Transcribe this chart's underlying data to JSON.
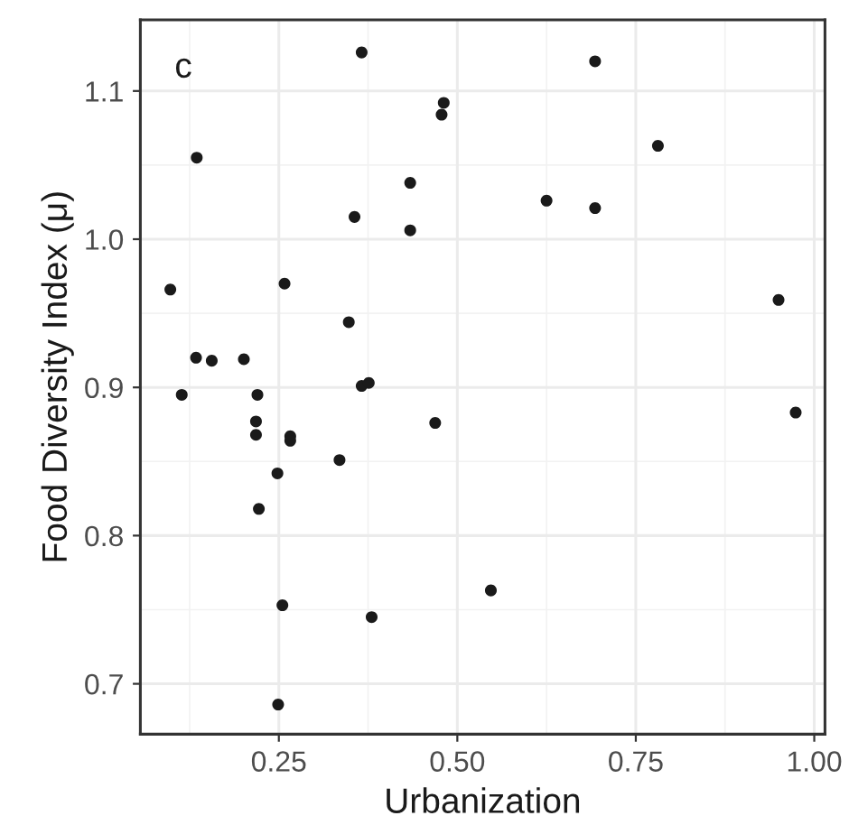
{
  "chart_data": {
    "type": "scatter",
    "xlabel": "Urbanization",
    "ylabel": "Food Diversity Index (μ)",
    "annotations": [
      "c"
    ],
    "x": [
      0.366,
      0.693,
      0.135,
      0.481,
      0.478,
      0.781,
      0.434,
      0.356,
      0.625,
      0.693,
      0.434,
      0.098,
      0.258,
      0.95,
      0.348,
      0.134,
      0.156,
      0.201,
      0.114,
      0.22,
      0.366,
      0.376,
      0.974,
      0.218,
      0.218,
      0.266,
      0.266,
      0.469,
      0.335,
      0.248,
      0.222,
      0.255,
      0.38,
      0.547,
      0.249
    ],
    "series": [
      {
        "color": "#1a1a1a",
        "values": [
          1.126,
          1.12,
          1.055,
          1.092,
          1.084,
          1.063,
          1.038,
          1.015,
          1.026,
          1.021,
          1.006,
          0.966,
          0.97,
          0.959,
          0.944,
          0.92,
          0.918,
          0.919,
          0.895,
          0.895,
          0.901,
          0.903,
          0.883,
          0.877,
          0.868,
          0.867,
          0.864,
          0.876,
          0.851,
          0.842,
          0.818,
          0.753,
          0.745,
          0.763,
          0.686
        ]
      }
    ],
    "xlim": [
      0.056,
      1.015
    ],
    "ylim": [
      0.666,
      1.148
    ],
    "xticks": [
      {
        "value": 0.25,
        "label": "0.25"
      },
      {
        "value": 0.5,
        "label": "0.50"
      },
      {
        "value": 0.75,
        "label": "0.75"
      },
      {
        "value": 1.0,
        "label": "1.00"
      }
    ],
    "yticks": [
      0.7,
      0.8,
      0.9,
      {
        "value": 1.0,
        "label": "1.0"
      },
      1.1
    ],
    "grid": true,
    "marker": "circle"
  }
}
